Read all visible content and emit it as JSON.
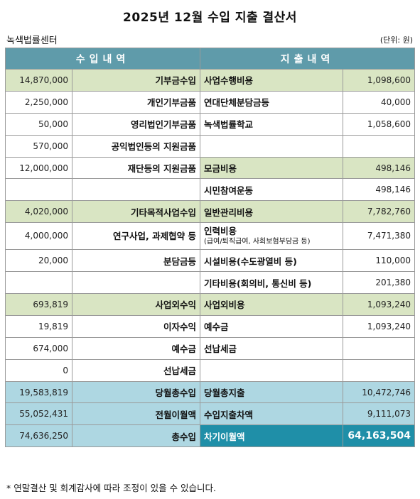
{
  "title": "2025년 12월 수입 지출 결산서",
  "org": "녹색법률센터",
  "unit": "(단위: 원)",
  "headers": {
    "income": "수입내역",
    "expense": "지출내역"
  },
  "rows": [
    {
      "type": "cat",
      "in_amt": "14,870,000",
      "in_lbl": "기부금수입",
      "out_lbl": "사업수행비용",
      "out_amt": "1,098,600"
    },
    {
      "type": "item",
      "in_amt": "2,250,000",
      "in_lbl": "개인기부금품",
      "out_lbl": "연대단체분담금등",
      "out_amt": "40,000"
    },
    {
      "type": "item",
      "in_amt": "50,000",
      "in_lbl": "영리법인기부금품",
      "out_lbl": "녹색법률학교",
      "out_amt": "1,058,600"
    },
    {
      "type": "item",
      "in_amt": "570,000",
      "in_lbl": "공익법인등의 지원금품",
      "out_lbl": "",
      "out_amt": ""
    },
    {
      "type": "mixed",
      "in_amt": "12,000,000",
      "in_lbl": "재단등의 지원금품",
      "out_lbl": "모금비용",
      "out_amt": "498,146"
    },
    {
      "type": "item",
      "in_amt": "",
      "in_lbl": "",
      "out_lbl": "시민참여운동",
      "out_amt": "498,146"
    },
    {
      "type": "cat",
      "in_amt": "4,020,000",
      "in_lbl": "기타목적사업수입",
      "out_lbl": "일반관리비용",
      "out_amt": "7,782,760"
    },
    {
      "type": "tall",
      "in_amt": "4,000,000",
      "in_lbl": "연구사업, 과제협약 등",
      "out_lbl": "인력비용",
      "out_sub": "(급여/퇴직급여, 사회보험부담금 등)",
      "out_amt": "7,471,380"
    },
    {
      "type": "item",
      "in_amt": "20,000",
      "in_lbl": "분담금등",
      "out_lbl": "시설비용(수도광열비 등)",
      "out_amt": "110,000"
    },
    {
      "type": "item",
      "in_amt": "",
      "in_lbl": "",
      "out_lbl": "기타비용(회의비, 통신비 등)",
      "out_amt": "201,380"
    },
    {
      "type": "cat",
      "in_amt": "693,819",
      "in_lbl": "사업외수익",
      "out_lbl": "사업외비용",
      "out_amt": "1,093,240"
    },
    {
      "type": "item",
      "in_amt": "19,819",
      "in_lbl": "이자수익",
      "out_lbl": "예수금",
      "out_amt": "1,093,240"
    },
    {
      "type": "item",
      "in_amt": "674,000",
      "in_lbl": "예수금",
      "out_lbl": "선납세금",
      "out_amt": ""
    },
    {
      "type": "item",
      "in_amt": "0",
      "in_lbl": "선납세금",
      "out_lbl": "",
      "out_amt": ""
    },
    {
      "type": "tot",
      "in_amt": "19,583,819",
      "in_lbl": "당월총수입",
      "out_lbl": "당월총지출",
      "out_amt": "10,472,746"
    },
    {
      "type": "tot",
      "in_amt": "55,052,431",
      "in_lbl": "전월이월액",
      "out_lbl": "수입지출차액",
      "out_amt": "9,111,073"
    },
    {
      "type": "final",
      "in_amt": "74,636,250",
      "in_lbl": "총수입",
      "out_lbl": "차기이월액",
      "out_amt": "64,163,504"
    }
  ],
  "note": "* 연말결산 및 회계감사에 따라 조정이 있을 수 있습니다.",
  "colors": {
    "header": "#5f9baa",
    "category": "#d9e5c3",
    "total": "#aed7e2",
    "final": "#1f8fa8"
  }
}
